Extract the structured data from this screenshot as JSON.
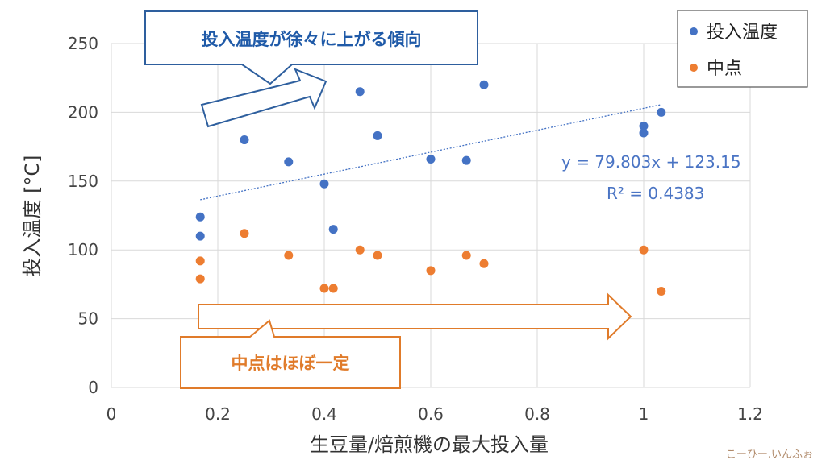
{
  "chart_data": {
    "type": "scatter",
    "title": "",
    "xlabel": "生豆量/焙煎機の最大投入量",
    "ylabel": "投入温度 [°C]",
    "xlim": [
      0,
      1.2
    ],
    "ylim": [
      0,
      250
    ],
    "x_ticks": [
      "0",
      "0.2",
      "0.4",
      "0.6",
      "0.8",
      "1",
      "1.2"
    ],
    "y_ticks": [
      "0",
      "50",
      "100",
      "150",
      "200",
      "250"
    ],
    "grid": true,
    "legend_position": "top-right",
    "series": [
      {
        "name": "投入温度",
        "color": "#4472c4",
        "points": [
          {
            "x": 0.167,
            "y": 124
          },
          {
            "x": 0.167,
            "y": 110
          },
          {
            "x": 0.25,
            "y": 180
          },
          {
            "x": 0.333,
            "y": 164
          },
          {
            "x": 0.4,
            "y": 148
          },
          {
            "x": 0.417,
            "y": 115
          },
          {
            "x": 0.467,
            "y": 215
          },
          {
            "x": 0.5,
            "y": 183
          },
          {
            "x": 0.6,
            "y": 166
          },
          {
            "x": 0.667,
            "y": 165
          },
          {
            "x": 0.7,
            "y": 220
          },
          {
            "x": 1.0,
            "y": 190
          },
          {
            "x": 1.0,
            "y": 185
          },
          {
            "x": 1.033,
            "y": 200
          }
        ]
      },
      {
        "name": "中点",
        "color": "#ed7d31",
        "points": [
          {
            "x": 0.167,
            "y": 92
          },
          {
            "x": 0.167,
            "y": 79
          },
          {
            "x": 0.25,
            "y": 112
          },
          {
            "x": 0.333,
            "y": 96
          },
          {
            "x": 0.4,
            "y": 72
          },
          {
            "x": 0.417,
            "y": 72
          },
          {
            "x": 0.467,
            "y": 100
          },
          {
            "x": 0.5,
            "y": 96
          },
          {
            "x": 0.6,
            "y": 85
          },
          {
            "x": 0.667,
            "y": 96
          },
          {
            "x": 0.7,
            "y": 90
          },
          {
            "x": 1.0,
            "y": 100
          },
          {
            "x": 1.033,
            "y": 70
          }
        ]
      }
    ],
    "trendline": {
      "series": "投入温度",
      "slope": 79.803,
      "intercept": 123.15,
      "x_range": [
        0.167,
        1.033
      ],
      "equation": "y = 79.803x + 123.15",
      "r_squared": "R² = 0.4383"
    },
    "annotations": [
      {
        "text": "投入温度が徐々に上がる傾向",
        "color": "#1f5aa8"
      },
      {
        "text": "中点はほぼ一定",
        "color": "#e07b2a"
      }
    ]
  },
  "watermark": "こーひー.いんふぉ"
}
